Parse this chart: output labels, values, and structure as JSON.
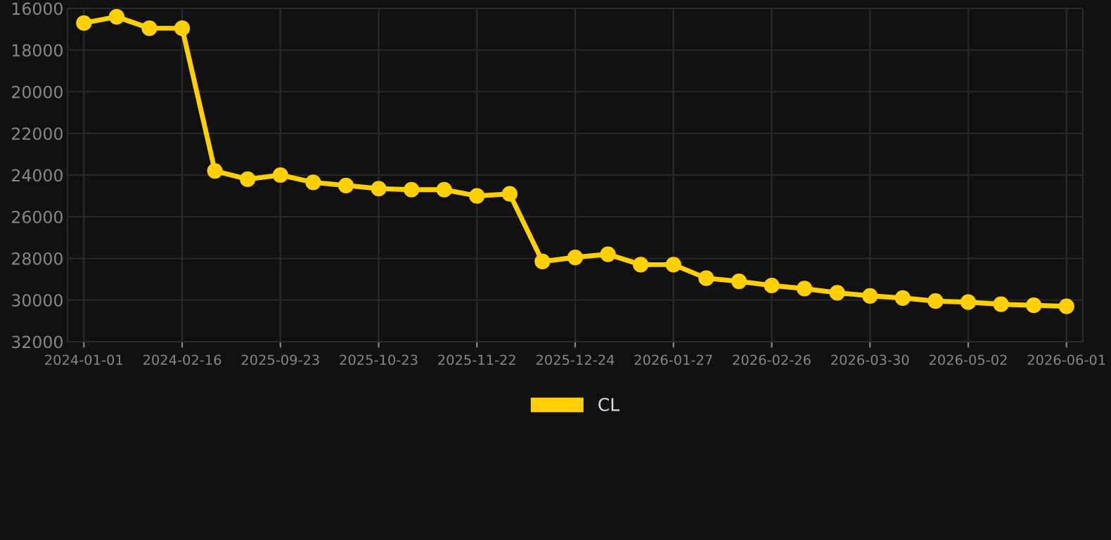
{
  "chart_data": {
    "type": "line",
    "categories": [
      "2024-01-01",
      null,
      null,
      "2024-02-16",
      null,
      null,
      "2025-09-23",
      null,
      null,
      "2025-10-23",
      null,
      null,
      "2025-11-22",
      null,
      null,
      "2025-12-24",
      null,
      null,
      "2026-01-27",
      null,
      null,
      "2026-02-26",
      null,
      null,
      "2026-03-30",
      null,
      null,
      "2026-05-02",
      null,
      null,
      "2026-06-01"
    ],
    "series": [
      {
        "name": "CL",
        "color": "#ffd000",
        "values": [
          16700,
          16400,
          16950,
          16950,
          23800,
          24200,
          24000,
          24350,
          24500,
          24650,
          24700,
          24700,
          25000,
          24900,
          28150,
          27950,
          27800,
          28300,
          28300,
          28950,
          29100,
          29300,
          29450,
          29650,
          29800,
          29900,
          30050,
          30100,
          30200,
          30250,
          30300
        ]
      }
    ],
    "ylim": [
      32000,
      16000
    ],
    "yticks": [
      16000,
      18000,
      20000,
      22000,
      24000,
      26000,
      28000,
      30000,
      32000
    ],
    "grid": true,
    "legend": "bottom",
    "marker": "circle",
    "line_style": "solid"
  }
}
